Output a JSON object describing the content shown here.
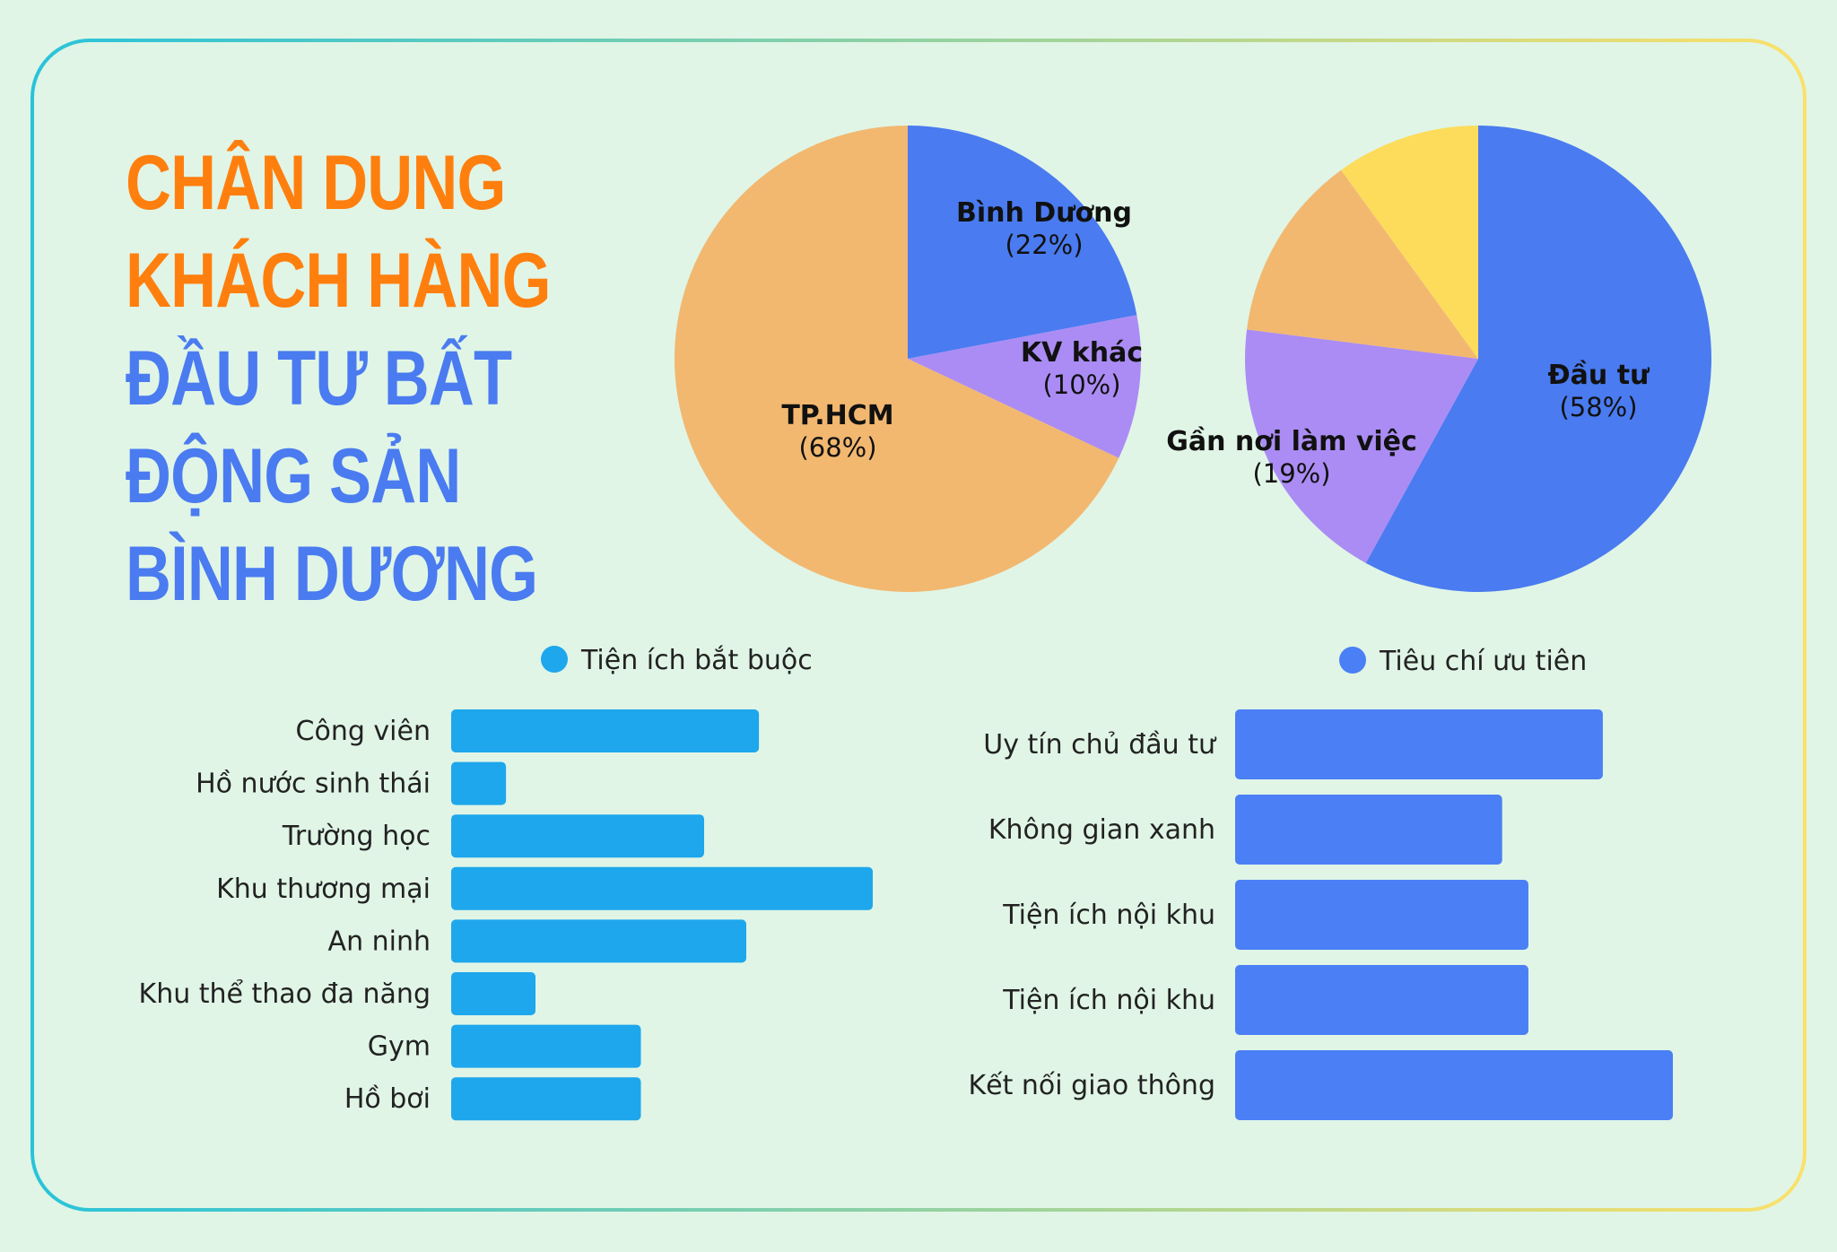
{
  "title": {
    "lines": [
      {
        "text": "CHÂN DUNG",
        "color": "orange"
      },
      {
        "text": "KHÁCH HÀNG",
        "color": "orange"
      },
      {
        "text": "ĐẦU TƯ BẤT",
        "color": "blue"
      },
      {
        "text": "ĐỘNG SẢN",
        "color": "blue"
      },
      {
        "text": "BÌNH DƯƠNG",
        "color": "blue"
      }
    ]
  },
  "colors": {
    "title_orange": "#ff7f0e",
    "title_blue": "#4a7bf0",
    "frame_start": "#29c3da",
    "frame_end": "#fbe06a"
  },
  "chart_data": [
    {
      "type": "pie",
      "slices": [
        {
          "label": "Bình Dương",
          "pct_text": "(22%)",
          "value": 22,
          "color": "#4a7bf0"
        },
        {
          "label": "KV khác",
          "pct_text": "(10%)",
          "value": 10,
          "color": "#ab8cf4"
        },
        {
          "label": "TP.HCM",
          "pct_text": "(68%)",
          "value": 68,
          "color": "#f2b870"
        }
      ]
    },
    {
      "type": "pie",
      "slices": [
        {
          "label": "Đầu tư",
          "pct_text": "(58%)",
          "value": 58,
          "color": "#4a7bf0"
        },
        {
          "label": "Gần nơi làm việc",
          "pct_text": "(19%)",
          "value": 19,
          "color": "#ab8cf4"
        },
        {
          "label": "",
          "pct_text": "",
          "value": 13,
          "color": "#f2b870"
        },
        {
          "label": "",
          "pct_text": "",
          "value": 10,
          "color": "#fddc5c"
        }
      ]
    },
    {
      "type": "bar",
      "orientation": "horizontal",
      "legend": {
        "label": "Tiện ích bắt buộc",
        "position": "top"
      },
      "color": "#1ea7ec",
      "categories": [
        "Công viên",
        "Hồ nước sinh thái",
        "Trường học",
        "Khu thương mại",
        "An ninh",
        "Khu thể thao đa năng",
        "Gym",
        "Hồ bơi"
      ],
      "values": [
        73,
        13,
        60,
        100,
        70,
        20,
        45,
        45
      ],
      "xlim": [
        0,
        100
      ]
    },
    {
      "type": "bar",
      "orientation": "horizontal",
      "legend": {
        "label": "Tiêu chí ưu tiên",
        "position": "top"
      },
      "color": "#4a7ff5",
      "categories": [
        "Uy tín chủ đầu tư",
        "Không gian xanh",
        "Tiện ích nội khu",
        "Tiện ích nội khu",
        "Kết nối giao thông"
      ],
      "values": [
        84,
        61,
        67,
        67,
        100
      ],
      "xlim": [
        0,
        100
      ]
    }
  ]
}
